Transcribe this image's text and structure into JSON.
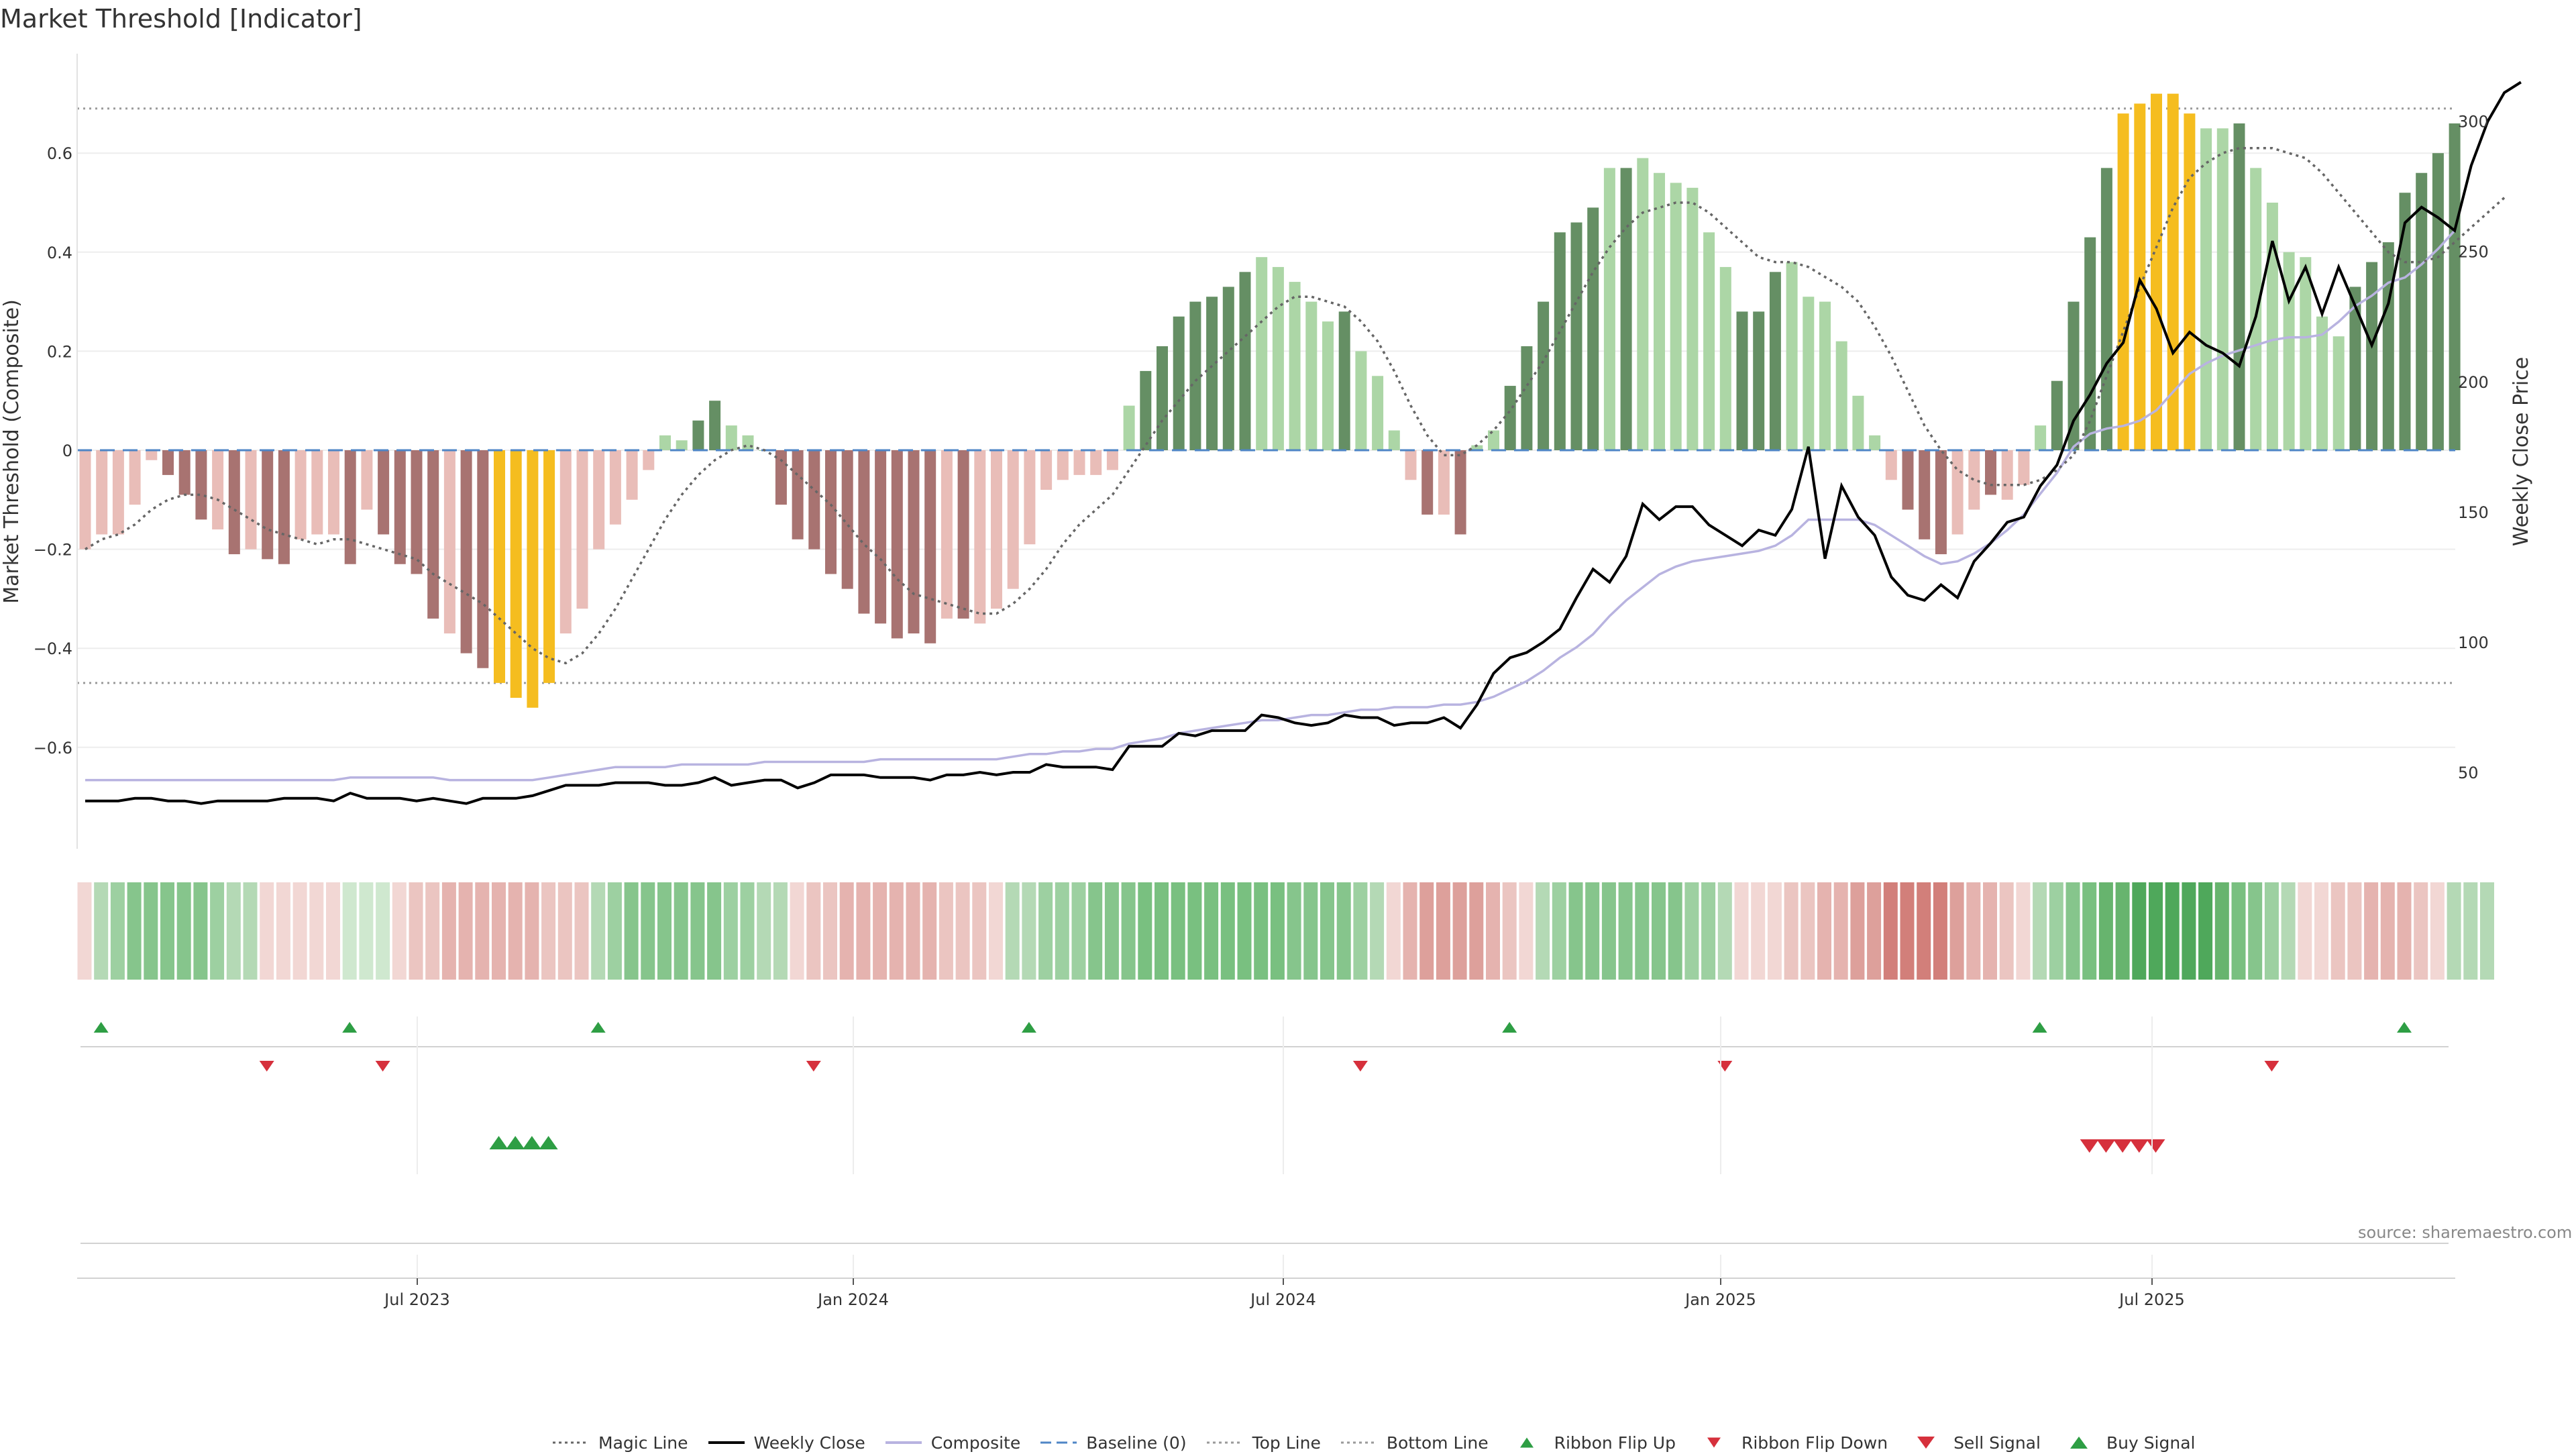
{
  "title": "Market Threshold [Indicator]",
  "source": "source: sharemaestro.com",
  "colors": {
    "bear_strong": "#a87371",
    "bear_weak": "#e9bdb8",
    "bull_strong": "#658f64",
    "bull_weak": "#acd6a6",
    "extreme": "#f5bd1f",
    "magic": "#666666",
    "close": "#000000",
    "composite": "#b8b3e0",
    "baseline": "#4f86c6",
    "threshold": "#9a9a9a",
    "buy": "#2e9e44",
    "sell": "#d6303c"
  },
  "chart_data": {
    "type": "bar",
    "title": "Market Threshold [Indicator]",
    "ylabel": "Market Threshold (Composite)",
    "y2label": "Weekly Close Price",
    "ylim": [
      -0.8,
      0.74
    ],
    "y2lim": [
      30,
      315
    ],
    "yticks": [
      "0.6",
      "0.4",
      "0.2",
      "0",
      "−0.2",
      "−0.4",
      "−0.6"
    ],
    "y2ticks": [
      "300",
      "250",
      "200",
      "150",
      "100",
      "50"
    ],
    "xticks": [
      "Jul 2023",
      "Jan 2024",
      "Jul 2024",
      "Jan 2025",
      "Jul 2025"
    ],
    "top_line": 0.69,
    "bottom_line": -0.47,
    "baseline": 0,
    "bar_values": [
      -0.2,
      -0.17,
      -0.17,
      -0.11,
      -0.02,
      -0.05,
      -0.09,
      -0.14,
      -0.16,
      -0.21,
      -0.2,
      -0.22,
      -0.23,
      -0.18,
      -0.17,
      -0.17,
      -0.23,
      -0.12,
      -0.17,
      -0.23,
      -0.25,
      -0.34,
      -0.37,
      -0.41,
      -0.44,
      -0.47,
      -0.5,
      -0.52,
      -0.47,
      -0.37,
      -0.32,
      -0.2,
      -0.15,
      -0.1,
      -0.04,
      0.03,
      0.02,
      0.06,
      0.1,
      0.05,
      0.03,
      0,
      -0.11,
      -0.18,
      -0.2,
      -0.25,
      -0.28,
      -0.33,
      -0.35,
      -0.38,
      -0.37,
      -0.39,
      -0.34,
      -0.34,
      -0.35,
      -0.32,
      -0.28,
      -0.19,
      -0.08,
      -0.06,
      -0.05,
      -0.05,
      -0.04,
      0.09,
      0.16,
      0.21,
      0.27,
      0.3,
      0.31,
      0.33,
      0.36,
      0.39,
      0.37,
      0.34,
      0.3,
      0.26,
      0.28,
      0.2,
      0.15,
      0.04,
      -0.06,
      -0.13,
      -0.13,
      -0.17,
      0.01,
      0.04,
      0.13,
      0.21,
      0.3,
      0.44,
      0.46,
      0.49,
      0.57,
      0.57,
      0.59,
      0.56,
      0.54,
      0.53,
      0.44,
      0.37,
      0.28,
      0.28,
      0.36,
      0.38,
      0.31,
      0.3,
      0.22,
      0.11,
      0.03,
      -0.06,
      -0.12,
      -0.18,
      -0.21,
      -0.17,
      -0.12,
      -0.09,
      -0.1,
      -0.07,
      0.05,
      0.14,
      0.3,
      0.43,
      0.57,
      0.68,
      0.7,
      0.72,
      0.72,
      0.68,
      0.65,
      0.65,
      0.66,
      0.57,
      0.5,
      0.4,
      0.39,
      0.27,
      0.23,
      0.33,
      0.38,
      0.42,
      0.52,
      0.56,
      0.6,
      0.66
    ],
    "bar_tones": [
      "w",
      "w",
      "w",
      "w",
      "w",
      "s",
      "s",
      "s",
      "w",
      "s",
      "w",
      "s",
      "s",
      "w",
      "w",
      "w",
      "s",
      "w",
      "s",
      "s",
      "s",
      "s",
      "w",
      "s",
      "s",
      "e",
      "e",
      "e",
      "e",
      "w",
      "w",
      "w",
      "w",
      "w",
      "w",
      "w",
      "w",
      "s",
      "s",
      "w",
      "w",
      "w",
      "s",
      "s",
      "s",
      "s",
      "s",
      "s",
      "s",
      "s",
      "s",
      "s",
      "w",
      "s",
      "w",
      "w",
      "w",
      "w",
      "w",
      "w",
      "w",
      "w",
      "w",
      "w",
      "s",
      "s",
      "s",
      "s",
      "s",
      "s",
      "s",
      "w",
      "w",
      "w",
      "w",
      "w",
      "s",
      "w",
      "w",
      "w",
      "w",
      "s",
      "w",
      "s",
      "w",
      "w",
      "s",
      "s",
      "s",
      "s",
      "s",
      "s",
      "w",
      "s",
      "w",
      "w",
      "w",
      "w",
      "w",
      "w",
      "s",
      "s",
      "s",
      "w",
      "w",
      "w",
      "w",
      "w",
      "w",
      "w",
      "s",
      "s",
      "s",
      "w",
      "w",
      "s",
      "w",
      "w",
      "w",
      "s",
      "s",
      "s",
      "s",
      "e",
      "e",
      "e",
      "e",
      "e",
      "w",
      "w",
      "s",
      "w",
      "w",
      "w",
      "w",
      "w",
      "w",
      "s",
      "s",
      "s",
      "s",
      "s",
      "s",
      "s"
    ],
    "magic_line": [
      -0.2,
      -0.18,
      -0.17,
      -0.15,
      -0.12,
      -0.1,
      -0.09,
      -0.09,
      -0.1,
      -0.12,
      -0.14,
      -0.16,
      -0.17,
      -0.18,
      -0.19,
      -0.18,
      -0.18,
      -0.19,
      -0.2,
      -0.21,
      -0.22,
      -0.25,
      -0.27,
      -0.29,
      -0.31,
      -0.34,
      -0.37,
      -0.4,
      -0.42,
      -0.43,
      -0.41,
      -0.37,
      -0.32,
      -0.26,
      -0.2,
      -0.14,
      -0.09,
      -0.05,
      -0.02,
      0,
      0.01,
      0,
      -0.02,
      -0.05,
      -0.08,
      -0.11,
      -0.15,
      -0.19,
      -0.22,
      -0.26,
      -0.29,
      -0.3,
      -0.31,
      -0.32,
      -0.33,
      -0.33,
      -0.31,
      -0.28,
      -0.24,
      -0.19,
      -0.15,
      -0.12,
      -0.09,
      -0.04,
      0.01,
      0.06,
      0.1,
      0.14,
      0.17,
      0.2,
      0.23,
      0.26,
      0.29,
      0.31,
      0.31,
      0.3,
      0.29,
      0.26,
      0.22,
      0.16,
      0.09,
      0.03,
      -0.01,
      -0.01,
      0.01,
      0.04,
      0.08,
      0.13,
      0.18,
      0.24,
      0.3,
      0.36,
      0.41,
      0.45,
      0.48,
      0.49,
      0.5,
      0.5,
      0.48,
      0.45,
      0.42,
      0.39,
      0.38,
      0.38,
      0.37,
      0.35,
      0.33,
      0.3,
      0.25,
      0.19,
      0.12,
      0.05,
      0,
      -0.04,
      -0.06,
      -0.07,
      -0.07,
      -0.07,
      -0.06,
      -0.04,
      -0.01,
      0.06,
      0.15,
      0.24,
      0.33,
      0.41,
      0.49,
      0.55,
      0.58,
      0.6,
      0.61,
      0.61,
      0.61,
      0.6,
      0.59,
      0.56,
      0.52,
      0.48,
      0.44,
      0.4,
      0.38,
      0.38,
      0.39,
      0.42,
      0.45,
      0.48,
      0.51
    ],
    "weekly_close": [
      39,
      39,
      39,
      40,
      40,
      39,
      39,
      38,
      39,
      39,
      39,
      39,
      40,
      40,
      40,
      39,
      42,
      40,
      40,
      40,
      39,
      40,
      39,
      38,
      40,
      40,
      40,
      41,
      43,
      45,
      45,
      45,
      46,
      46,
      46,
      45,
      45,
      46,
      48,
      45,
      46,
      47,
      47,
      44,
      46,
      49,
      49,
      49,
      48,
      48,
      48,
      47,
      49,
      49,
      50,
      49,
      50,
      50,
      53,
      52,
      52,
      52,
      51,
      60,
      60,
      60,
      65,
      64,
      66,
      66,
      66,
      72,
      71,
      69,
      68,
      69,
      72,
      71,
      71,
      68,
      69,
      69,
      71,
      67,
      76,
      88,
      94,
      96,
      100,
      105,
      117,
      128,
      123,
      133,
      153,
      147,
      152,
      152,
      145,
      141,
      137,
      143,
      141,
      151,
      175,
      132,
      160,
      148,
      141,
      125,
      118,
      116,
      122,
      117,
      131,
      138,
      146,
      148,
      160,
      168,
      185,
      195,
      207,
      215,
      239,
      228,
      211,
      219,
      214,
      211,
      206,
      225,
      254,
      231,
      244,
      226,
      244,
      229,
      214,
      230,
      261,
      267,
      263,
      258,
      283,
      300,
      311,
      315
    ],
    "composite_line": [
      47,
      47,
      47,
      47,
      47,
      47,
      47,
      47,
      47,
      47,
      47,
      47,
      47,
      47,
      47,
      47,
      48,
      48,
      48,
      48,
      48,
      48,
      47,
      47,
      47,
      47,
      47,
      47,
      48,
      49,
      50,
      51,
      52,
      52,
      52,
      52,
      53,
      53,
      53,
      53,
      53,
      54,
      54,
      54,
      54,
      54,
      54,
      54,
      55,
      55,
      55,
      55,
      55,
      55,
      55,
      55,
      56,
      57,
      57,
      58,
      58,
      59,
      59,
      61,
      62,
      63,
      65,
      66,
      67,
      68,
      69,
      70,
      70,
      71,
      72,
      72,
      73,
      74,
      74,
      75,
      75,
      75,
      76,
      76,
      77,
      79,
      82,
      85,
      89,
      94,
      98,
      103,
      110,
      116,
      121,
      126,
      129,
      131,
      132,
      133,
      134,
      135,
      137,
      141,
      147,
      147,
      147,
      147,
      145,
      141,
      137,
      133,
      130,
      131,
      134,
      138,
      143,
      149,
      157,
      165,
      175,
      180,
      182,
      183,
      185,
      189,
      196,
      203,
      207,
      210,
      212,
      214,
      216,
      217,
      217,
      218,
      223,
      229,
      233,
      238,
      240,
      245,
      251,
      258
    ],
    "ribbon_colors": [
      "#f2d7d4",
      "#b4d9b5",
      "#9dd0a1",
      "#86c58c",
      "#86c58c",
      "#86c58c",
      "#86c58c",
      "#86c58c",
      "#9dd0a1",
      "#b4d9b5",
      "#b4d9b5",
      "#f2d7d4",
      "#f2d7d4",
      "#f2d7d4",
      "#f2d7d4",
      "#f2d7d4",
      "#cfe8cf",
      "#cfe8cf",
      "#cfe8cf",
      "#f2d7d4",
      "#ebc5c1",
      "#ebc5c1",
      "#e5b3af",
      "#e5b3af",
      "#e5b3af",
      "#e5b3af",
      "#e5b3af",
      "#e5b3af",
      "#ebc5c1",
      "#ebc5c1",
      "#ebc5c1",
      "#b4d9b5",
      "#9dd0a1",
      "#86c58c",
      "#86c58c",
      "#86c58c",
      "#86c58c",
      "#86c58c",
      "#86c58c",
      "#9dd0a1",
      "#9dd0a1",
      "#b4d9b5",
      "#b4d9b5",
      "#f2d7d4",
      "#ebc5c1",
      "#ebc5c1",
      "#e5b3af",
      "#e5b3af",
      "#e5b3af",
      "#e5b3af",
      "#e5b3af",
      "#e5b3af",
      "#ebc5c1",
      "#ebc5c1",
      "#ebc5c1",
      "#f2d7d4",
      "#b4d9b5",
      "#b4d9b5",
      "#9dd0a1",
      "#9dd0a1",
      "#9dd0a1",
      "#86c58c",
      "#86c58c",
      "#86c58c",
      "#79c080",
      "#79c080",
      "#79c080",
      "#79c080",
      "#79c080",
      "#79c080",
      "#79c080",
      "#79c080",
      "#79c080",
      "#86c58c",
      "#86c58c",
      "#86c58c",
      "#86c58c",
      "#9dd0a1",
      "#b4d9b5",
      "#f2d7d4",
      "#e5b3af",
      "#dda09b",
      "#dda09b",
      "#dda09b",
      "#dda09b",
      "#e5b3af",
      "#ebc5c1",
      "#f2d7d4",
      "#b4d9b5",
      "#9dd0a1",
      "#86c58c",
      "#86c58c",
      "#86c58c",
      "#86c58c",
      "#86c58c",
      "#86c58c",
      "#86c58c",
      "#9dd0a1",
      "#9dd0a1",
      "#b4d9b5",
      "#f2d7d4",
      "#f2d7d4",
      "#f2d7d4",
      "#ebc5c1",
      "#ebc5c1",
      "#e5b3af",
      "#e5b3af",
      "#dda09b",
      "#dda09b",
      "#d27f7a",
      "#d27f7a",
      "#d27f7a",
      "#d27f7a",
      "#dda09b",
      "#e5b3af",
      "#e5b3af",
      "#ebc5c1",
      "#f2d7d4",
      "#b4d9b5",
      "#9dd0a1",
      "#86c58c",
      "#79c080",
      "#67b46e",
      "#67b46e",
      "#4fa85b",
      "#4fa85b",
      "#4fa85b",
      "#4fa85b",
      "#4fa85b",
      "#67b46e",
      "#79c080",
      "#86c58c",
      "#9dd0a1",
      "#b4d9b5",
      "#f2d7d4",
      "#f2d7d4",
      "#ebc5c1",
      "#ebc5c1",
      "#e5b3af",
      "#e5b3af",
      "#e5b3af",
      "#ebc5c1",
      "#f2d7d4",
      "#b4d9b5",
      "#b4d9b5",
      "#b4d9b5"
    ],
    "ribbon_flip_up": [
      1,
      16,
      31,
      57,
      86,
      118,
      140
    ],
    "ribbon_flip_down": [
      11,
      18,
      44,
      77,
      99,
      132
    ],
    "buy_signal": [
      25,
      26,
      27,
      28
    ],
    "sell_signal": [
      121,
      122,
      123,
      124,
      125
    ]
  },
  "legend": [
    {
      "label": "Magic Line",
      "symbol": "dotted-line",
      "color": "#666666"
    },
    {
      "label": "Weekly Close",
      "symbol": "solid-line",
      "color": "#000000"
    },
    {
      "label": "Composite",
      "symbol": "solid-line",
      "color": "#b8b3e0"
    },
    {
      "label": "Baseline (0)",
      "symbol": "dashed-line",
      "color": "#4f86c6"
    },
    {
      "label": "Top Line",
      "symbol": "dotted-line",
      "color": "#9a9a9a"
    },
    {
      "label": "Bottom Line",
      "symbol": "dotted-line",
      "color": "#9a9a9a"
    },
    {
      "label": "Ribbon Flip Up",
      "symbol": "triangle-up",
      "color": "#2e9e44"
    },
    {
      "label": "Ribbon Flip Down",
      "symbol": "triangle-down",
      "color": "#d6303c"
    },
    {
      "label": "Sell Signal",
      "symbol": "triangle-down-large",
      "color": "#d6303c"
    },
    {
      "label": "Buy Signal",
      "symbol": "triangle-up-large",
      "color": "#2e9e44"
    }
  ]
}
